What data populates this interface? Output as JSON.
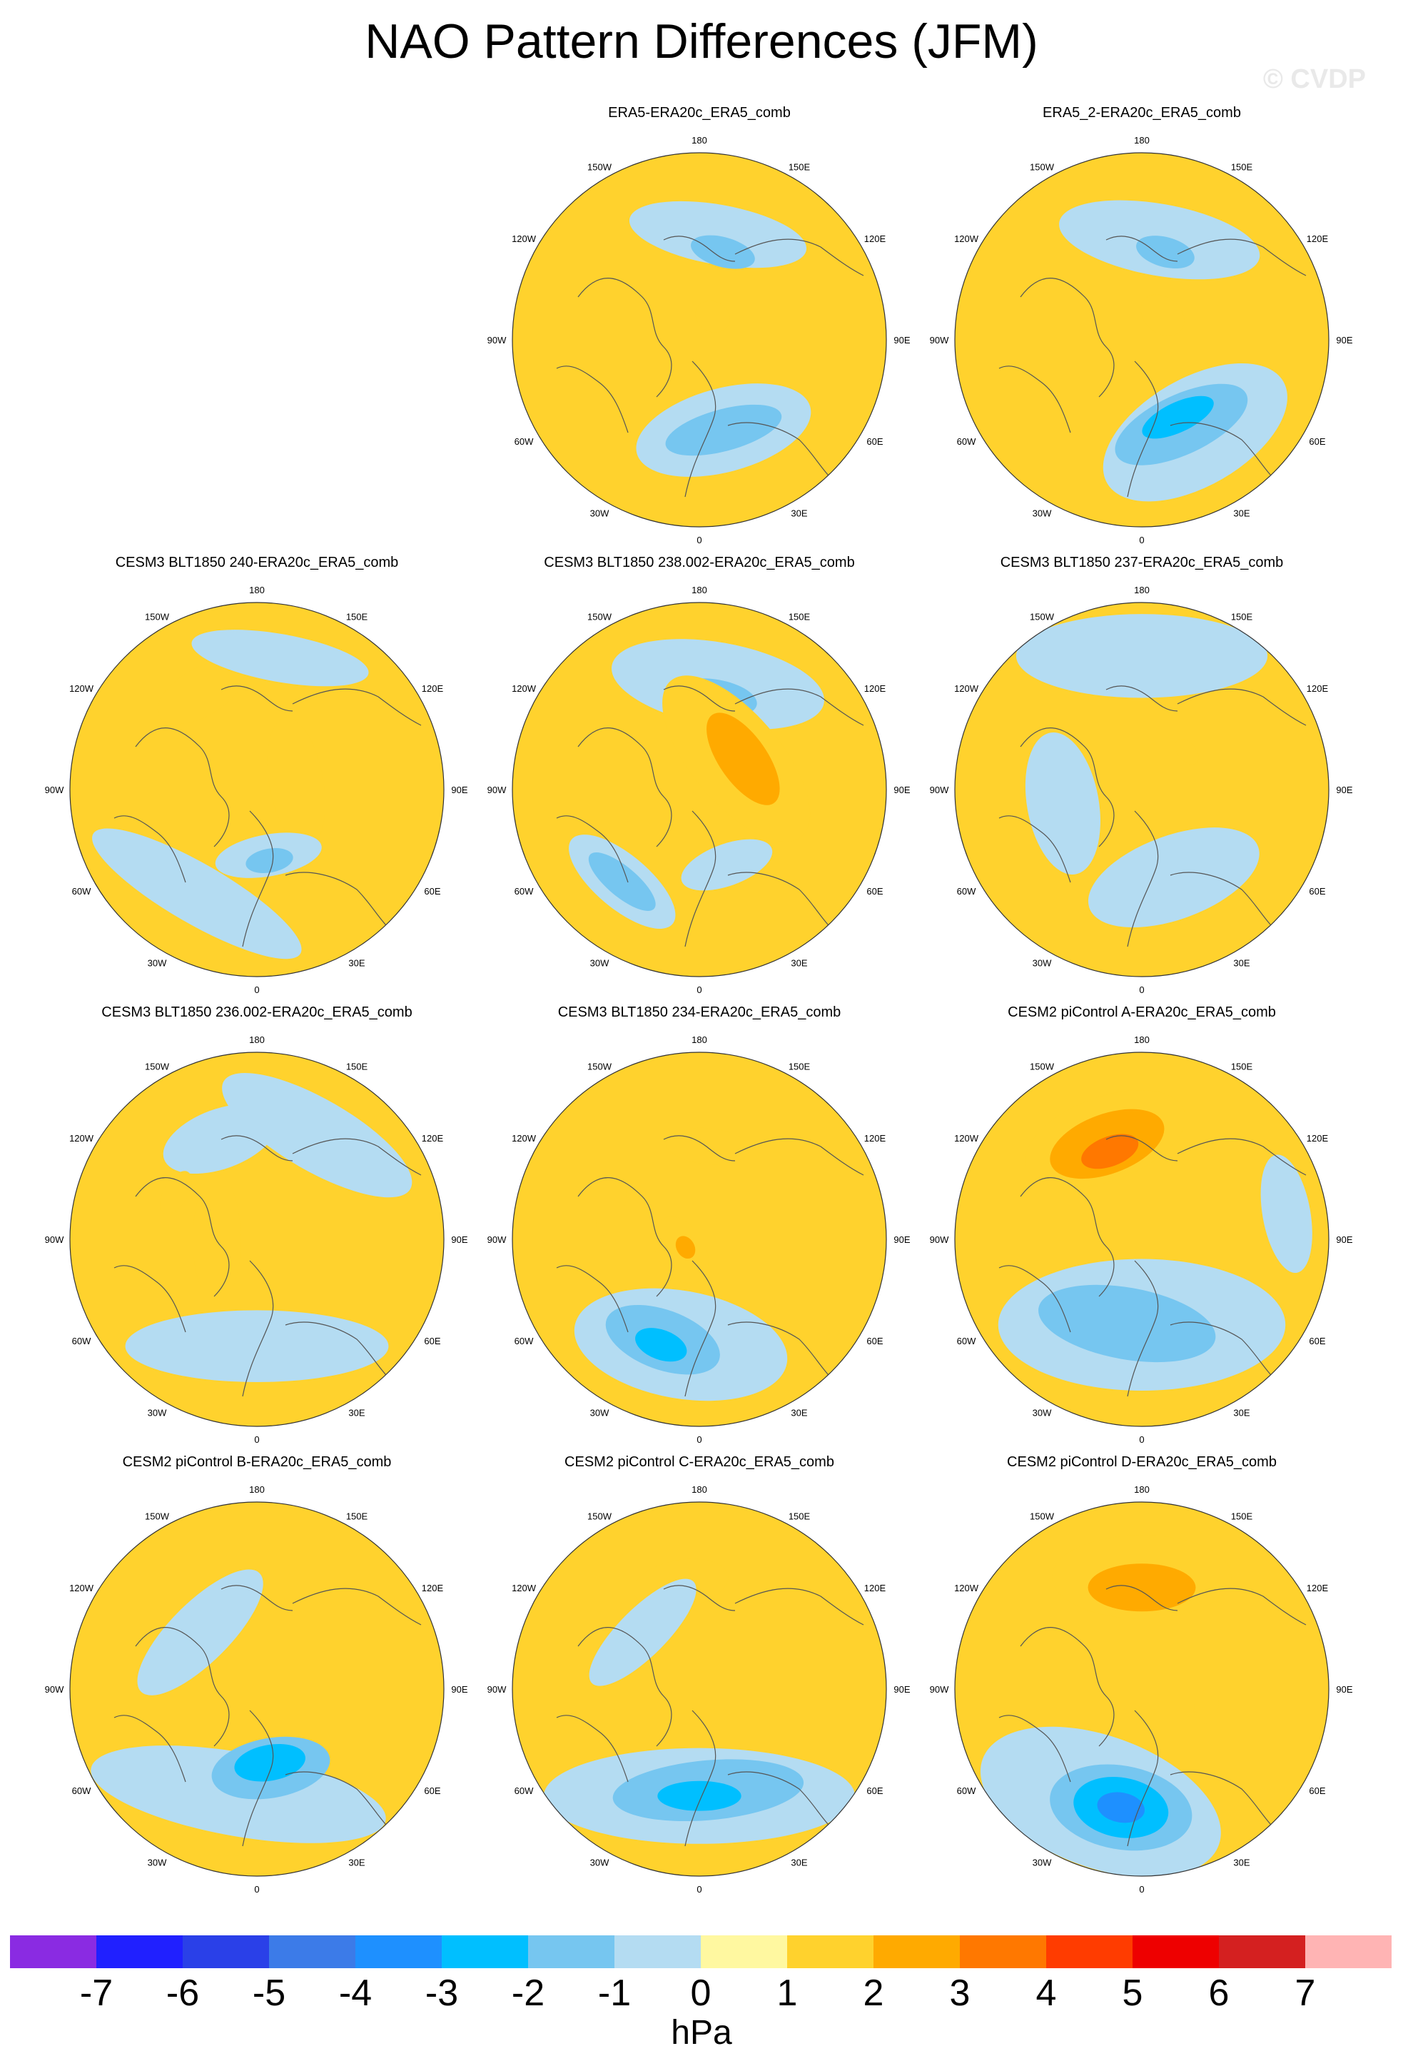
{
  "chart_data": {
    "type": "polar-stereographic contour maps",
    "title": "NAO Pattern Differences (JFM)",
    "watermark": "© CVDP",
    "units": "hPa",
    "colorbar": {
      "ticks": [
        "-7",
        "-6",
        "-5",
        "-4",
        "-3",
        "-2",
        "-1",
        "0",
        "1",
        "2",
        "3",
        "4",
        "5",
        "6",
        "7"
      ],
      "colors": [
        "#8a2be2",
        "#2020ff",
        "#2a40e8",
        "#3c7be8",
        "#1e90ff",
        "#00bfff",
        "#76c6f0",
        "#b4dcf2",
        "#fff8a0",
        "#ffd22d",
        "#ffaa00",
        "#ff7800",
        "#ff3c00",
        "#ee0000",
        "#d42020",
        "#ffb4b4"
      ]
    },
    "map_labels": {
      "top": "180",
      "bottom": "0",
      "left": "90W",
      "right": "90E",
      "ul2": "150W",
      "ur2": "150E",
      "ul1": "120W",
      "ur1": "120E",
      "ll1": "60W",
      "lr1": "60E",
      "ll2": "30W",
      "lr2": "30E"
    },
    "panels": [
      {
        "title": "ERA5-ERA20c_ERA5_comb",
        "features": [
          {
            "kind": "blob",
            "level": -1,
            "lon": 170,
            "lat": 50,
            "a": 0.3,
            "b": 0.1
          },
          {
            "kind": "blob",
            "level": -2,
            "lon": 165,
            "lat": 56,
            "a": 0.11,
            "b": 0.05
          },
          {
            "kind": "blob",
            "level": -1,
            "lon": 15,
            "lat": 55,
            "a": 0.3,
            "b": 0.14
          },
          {
            "kind": "blob",
            "level": -2,
            "lon": 15,
            "lat": 55,
            "a": 0.2,
            "b": 0.07
          },
          {
            "kind": "blob",
            "level": 1,
            "lon": 150,
            "lat": 80,
            "a": 0.06,
            "b": 0.05
          }
        ]
      },
      {
        "title": "ERA5_2-ERA20c_ERA5_comb",
        "features": [
          {
            "kind": "blob",
            "level": -1,
            "lon": 170,
            "lat": 52,
            "a": 0.34,
            "b": 0.12
          },
          {
            "kind": "blob",
            "level": -2,
            "lon": 165,
            "lat": 56,
            "a": 0.1,
            "b": 0.05
          },
          {
            "kind": "blob",
            "level": -1,
            "lon": 30,
            "lat": 50,
            "a": 0.34,
            "b": 0.18
          },
          {
            "kind": "blob",
            "level": -2,
            "lon": 25,
            "lat": 55,
            "a": 0.24,
            "b": 0.1
          },
          {
            "kind": "blob",
            "level": -3,
            "lon": 25,
            "lat": 58,
            "a": 0.13,
            "b": 0.05
          },
          {
            "kind": "blob",
            "level": 1,
            "lon": 140,
            "lat": 78,
            "a": 0.08,
            "b": 0.06
          }
        ]
      },
      {
        "title": "CESM3 BLT1850 240-ERA20c_ERA5_comb",
        "features": [
          {
            "kind": "blob",
            "level": 1,
            "lon": -150,
            "lat": 48,
            "a": 0.16,
            "b": 0.08
          },
          {
            "kind": "blob",
            "level": 1,
            "lon": 100,
            "lat": 75,
            "a": 0.22,
            "b": 0.09
          },
          {
            "kind": "blob",
            "level": -1,
            "lon": -30,
            "lat": 45,
            "a": 0.4,
            "b": 0.1
          },
          {
            "kind": "blob",
            "level": -1,
            "lon": 10,
            "lat": 65,
            "a": 0.18,
            "b": 0.07
          },
          {
            "kind": "blob",
            "level": -2,
            "lon": 10,
            "lat": 63,
            "a": 0.08,
            "b": 0.04
          },
          {
            "kind": "blob",
            "level": -1,
            "lon": 170,
            "lat": 40,
            "a": 0.3,
            "b": 0.08
          }
        ]
      },
      {
        "title": "CESM3 BLT1850 238.002-ERA20c_ERA5_comb",
        "features": [
          {
            "kind": "blob",
            "level": -1,
            "lon": 170,
            "lat": 50,
            "a": 0.36,
            "b": 0.14
          },
          {
            "kind": "blob",
            "level": -2,
            "lon": 170,
            "lat": 55,
            "a": 0.14,
            "b": 0.06
          },
          {
            "kind": "blob",
            "level": 1,
            "lon": 130,
            "lat": 72,
            "a": 0.34,
            "b": 0.15
          },
          {
            "kind": "blob",
            "level": 2,
            "lon": 125,
            "lat": 70,
            "a": 0.18,
            "b": 0.08
          },
          {
            "kind": "blob",
            "level": -1,
            "lon": -40,
            "lat": 45,
            "a": 0.22,
            "b": 0.09
          },
          {
            "kind": "blob",
            "level": -2,
            "lon": -40,
            "lat": 45,
            "a": 0.14,
            "b": 0.05
          },
          {
            "kind": "blob",
            "level": -1,
            "lon": 20,
            "lat": 60,
            "a": 0.16,
            "b": 0.07
          }
        ]
      },
      {
        "title": "CESM3 BLT1850 237-ERA20c_ERA5_comb",
        "features": [
          {
            "kind": "blob",
            "level": -1,
            "lon": 180,
            "lat": 40,
            "a": 0.42,
            "b": 0.14
          },
          {
            "kind": "blob",
            "level": -1,
            "lon": 20,
            "lat": 55,
            "a": 0.3,
            "b": 0.14
          },
          {
            "kind": "blob",
            "level": -1,
            "lon": -80,
            "lat": 60,
            "a": 0.24,
            "b": 0.12
          },
          {
            "kind": "blob",
            "level": 1,
            "lon": 130,
            "lat": 68,
            "a": 0.05,
            "b": 0.03
          }
        ]
      },
      {
        "title": "CESM3 BLT1850 236.002-ERA20c_ERA5_comb",
        "features": [
          {
            "kind": "blob",
            "level": -1,
            "lon": 150,
            "lat": 45,
            "a": 0.36,
            "b": 0.12
          },
          {
            "kind": "blob",
            "level": -1,
            "lon": 0,
            "lat": 50,
            "a": 0.44,
            "b": 0.12
          },
          {
            "kind": "blob",
            "level": -1,
            "lon": -160,
            "lat": 50,
            "a": 0.2,
            "b": 0.1
          },
          {
            "kind": "blob",
            "level": 1,
            "lon": -90,
            "lat": 75,
            "a": 0.22,
            "b": 0.08
          },
          {
            "kind": "blob",
            "level": 1,
            "lon": -120,
            "lat": 55,
            "a": 0.08,
            "b": 0.04
          }
        ]
      },
      {
        "title": "CESM3 BLT1850 234-ERA20c_ERA5_comb",
        "features": [
          {
            "kind": "blob",
            "level": -1,
            "lon": -10,
            "lat": 50,
            "a": 0.36,
            "b": 0.18
          },
          {
            "kind": "blob",
            "level": -2,
            "lon": -20,
            "lat": 50,
            "a": 0.2,
            "b": 0.1
          },
          {
            "kind": "blob",
            "level": -3,
            "lon": -20,
            "lat": 48,
            "a": 0.09,
            "b": 0.05
          },
          {
            "kind": "blob",
            "level": 1,
            "lon": 175,
            "lat": 55,
            "a": 0.14,
            "b": 0.06
          },
          {
            "kind": "blob",
            "level": 1,
            "lon": -60,
            "lat": 82,
            "a": 0.12,
            "b": 0.08
          },
          {
            "kind": "blob",
            "level": 2,
            "lon": -60,
            "lat": 84,
            "a": 0.04,
            "b": 0.03
          },
          {
            "kind": "blob",
            "level": 1,
            "lon": -110,
            "lat": 55,
            "a": 0.1,
            "b": 0.04
          }
        ]
      },
      {
        "title": "CESM2 piControl A-ERA20c_ERA5_comb",
        "features": [
          {
            "kind": "blob",
            "level": 1,
            "lon": -160,
            "lat": 50,
            "a": 0.28,
            "b": 0.14
          },
          {
            "kind": "blob",
            "level": 2,
            "lon": -160,
            "lat": 52,
            "a": 0.2,
            "b": 0.1
          },
          {
            "kind": "blob",
            "level": 3,
            "lon": -160,
            "lat": 55,
            "a": 0.1,
            "b": 0.05
          },
          {
            "kind": "blob",
            "level": -1,
            "lon": 0,
            "lat": 58,
            "a": 0.48,
            "b": 0.22
          },
          {
            "kind": "blob",
            "level": -2,
            "lon": -10,
            "lat": 58,
            "a": 0.3,
            "b": 0.12
          },
          {
            "kind": "blob",
            "level": -1,
            "lon": 100,
            "lat": 35,
            "a": 0.2,
            "b": 0.08
          }
        ]
      },
      {
        "title": "CESM2 piControl B-ERA20c_ERA5_comb",
        "features": [
          {
            "kind": "blob",
            "level": -1,
            "lon": -10,
            "lat": 50,
            "a": 0.5,
            "b": 0.14
          },
          {
            "kind": "blob",
            "level": -2,
            "lon": 10,
            "lat": 60,
            "a": 0.2,
            "b": 0.1
          },
          {
            "kind": "blob",
            "level": -3,
            "lon": 10,
            "lat": 62,
            "a": 0.12,
            "b": 0.06
          },
          {
            "kind": "blob",
            "level": -1,
            "lon": -135,
            "lat": 60,
            "a": 0.28,
            "b": 0.1
          }
        ]
      },
      {
        "title": "CESM2 piControl C-ERA20c_ERA5_comb",
        "features": [
          {
            "kind": "blob",
            "level": 1,
            "lon": -170,
            "lat": 50,
            "a": 0.16,
            "b": 0.08
          },
          {
            "kind": "blob",
            "level": -1,
            "lon": 0,
            "lat": 50,
            "a": 0.52,
            "b": 0.16
          },
          {
            "kind": "blob",
            "level": -2,
            "lon": 5,
            "lat": 52,
            "a": 0.32,
            "b": 0.1
          },
          {
            "kind": "blob",
            "level": -3,
            "lon": 0,
            "lat": 50,
            "a": 0.14,
            "b": 0.05
          },
          {
            "kind": "blob",
            "level": -1,
            "lon": -135,
            "lat": 60,
            "a": 0.24,
            "b": 0.08
          }
        ]
      },
      {
        "title": "CESM2 piControl D-ERA20c_ERA5_comb",
        "features": [
          {
            "kind": "blob",
            "level": 1,
            "lon": 180,
            "lat": 48,
            "a": 0.3,
            "b": 0.14
          },
          {
            "kind": "blob",
            "level": 2,
            "lon": 180,
            "lat": 52,
            "a": 0.18,
            "b": 0.08
          },
          {
            "kind": "blob",
            "level": -1,
            "lon": -20,
            "lat": 45,
            "a": 0.42,
            "b": 0.22
          },
          {
            "kind": "blob",
            "level": -2,
            "lon": -10,
            "lat": 45,
            "a": 0.24,
            "b": 0.14
          },
          {
            "kind": "blob",
            "level": -3,
            "lon": -10,
            "lat": 45,
            "a": 0.16,
            "b": 0.1
          },
          {
            "kind": "blob",
            "level": -4,
            "lon": -10,
            "lat": 45,
            "a": 0.08,
            "b": 0.05
          },
          {
            "kind": "blob",
            "level": 1,
            "lon": 75,
            "lat": 65,
            "a": 0.06,
            "b": 0.04
          }
        ]
      }
    ]
  }
}
